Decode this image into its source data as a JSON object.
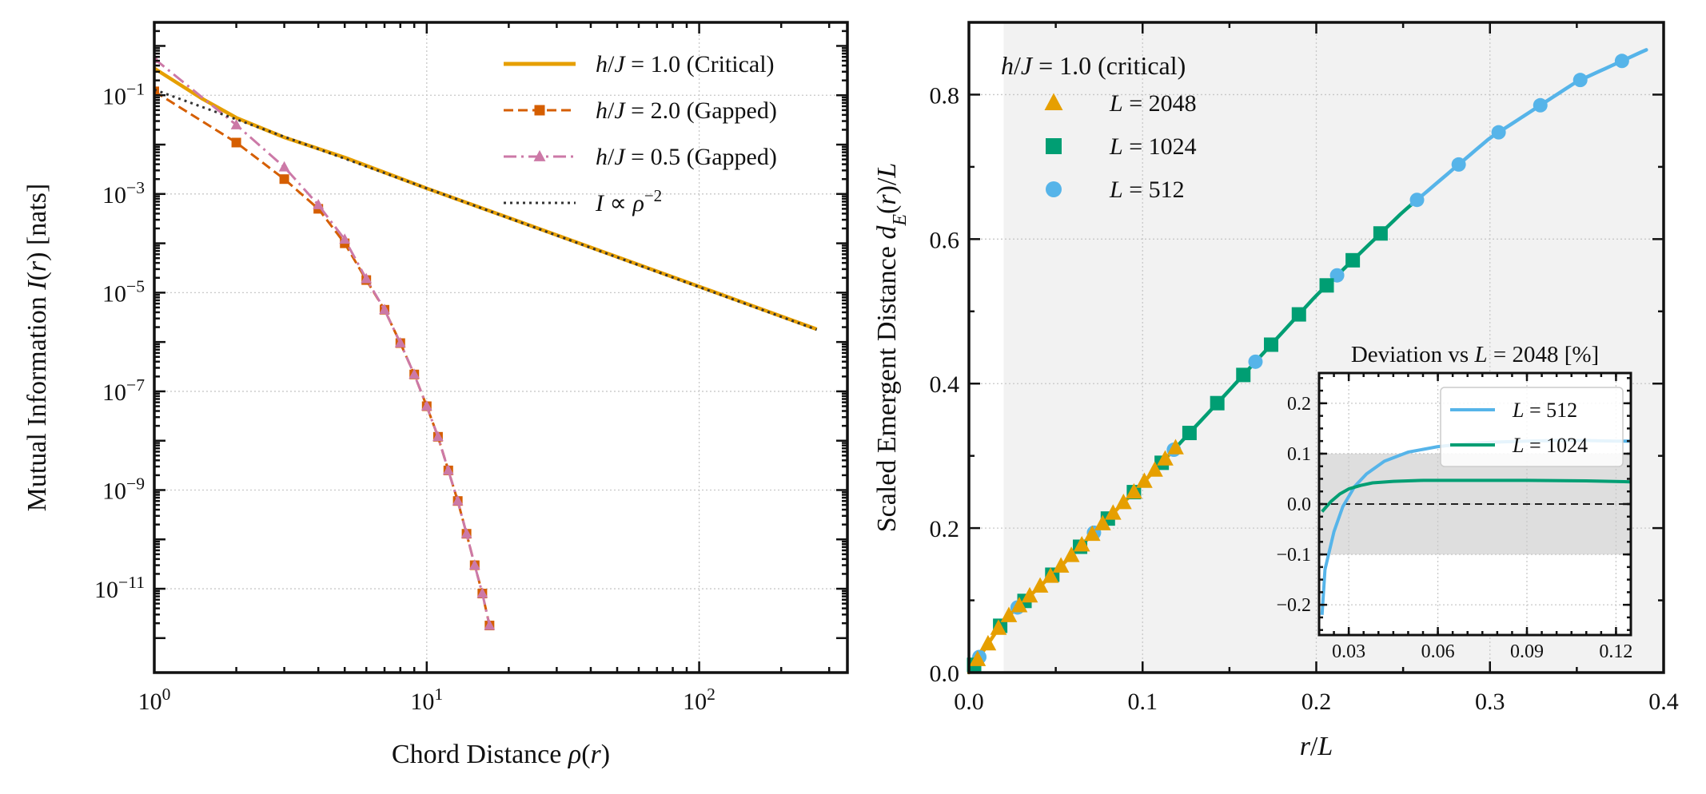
{
  "colors": {
    "critical": "#E69F00",
    "gapped2": "#D55E00",
    "gapped05": "#CC79A7",
    "fit": "#333333",
    "L2048": "#E69F00",
    "L1024": "#009E73",
    "L512": "#56B4E9",
    "shade": "#ececec",
    "band": "#bdbdbd"
  },
  "chart_data": [
    {
      "type": "line",
      "log_x": true,
      "log_y": true,
      "xlabel": "Chord Distance ρ(r)",
      "ylabel": "Mutual Information I(r) [nats]",
      "xlim": [
        1,
        350
      ],
      "ylim": [
        2e-13,
        3
      ],
      "x_ticks": [
        1,
        10,
        100
      ],
      "x_tick_labels": [
        {
          "base": "10",
          "exp": "0"
        },
        {
          "base": "10",
          "exp": "1"
        },
        {
          "base": "10",
          "exp": "2"
        }
      ],
      "y_ticks": [
        1e-11,
        1e-09,
        1e-07,
        1e-05,
        0.001,
        0.1
      ],
      "y_tick_labels": [
        {
          "base": "10",
          "exp": "−11"
        },
        {
          "base": "10",
          "exp": "−9"
        },
        {
          "base": "10",
          "exp": "−7"
        },
        {
          "base": "10",
          "exp": "−5"
        },
        {
          "base": "10",
          "exp": "−3"
        },
        {
          "base": "10",
          "exp": "−1"
        }
      ],
      "grid": true,
      "legend_position": "top-right",
      "series": [
        {
          "id": "critical",
          "name": "h/J = 1.0 (Critical)",
          "legend_parts": [
            {
              "t": "h",
              "i": true
            },
            {
              "t": "/",
              "i": false
            },
            {
              "t": "J",
              "i": true
            },
            {
              "t": " = 1.0 (Critical)",
              "i": false
            }
          ],
          "color_key": "critical",
          "style": "solid",
          "marker": "none",
          "x": [
            1,
            1.5,
            2,
            3,
            5,
            10,
            20,
            50,
            100,
            270
          ],
          "y": [
            0.35,
            0.085,
            0.035,
            0.014,
            0.0055,
            0.0013,
            0.00033,
            5.3e-05,
            1.33e-05,
            1.82e-06
          ]
        },
        {
          "id": "gapped2",
          "name": "h/J = 2.0 (Gapped)",
          "legend_parts": [
            {
              "t": "h",
              "i": true
            },
            {
              "t": "/",
              "i": false
            },
            {
              "t": "J",
              "i": true
            },
            {
              "t": " = 2.0 (Gapped)",
              "i": false
            }
          ],
          "color_key": "gapped2",
          "style": "dashed",
          "marker": "square",
          "x": [
            1,
            2,
            3,
            4,
            5,
            6,
            7,
            8,
            9,
            10,
            11,
            12,
            13,
            14,
            15,
            16,
            17
          ],
          "y": [
            0.12,
            0.011,
            0.002,
            0.0005,
            0.0001,
            1.8e-05,
            4.5e-06,
            9.5e-07,
            2.2e-07,
            5e-08,
            1.2e-08,
            2.5e-09,
            6e-10,
            1.3e-10,
            3e-11,
            8e-12,
            1.8e-12
          ]
        },
        {
          "id": "gapped05",
          "name": "h/J = 0.5 (Gapped)",
          "legend_parts": [
            {
              "t": "h",
              "i": true
            },
            {
              "t": "/",
              "i": false
            },
            {
              "t": "J",
              "i": true
            },
            {
              "t": " = 0.5 (Gapped)",
              "i": false
            }
          ],
          "color_key": "gapped05",
          "style": "dashdot",
          "marker": "triangle",
          "x": [
            1,
            2,
            3,
            4,
            5,
            6,
            7,
            8,
            9,
            10,
            11,
            12,
            13,
            14,
            15,
            16,
            17
          ],
          "y": [
            0.55,
            0.025,
            0.0035,
            0.0006,
            0.00012,
            1.9e-05,
            4.5e-06,
            9.5e-07,
            2.2e-07,
            5e-08,
            1.2e-08,
            2.5e-09,
            6e-10,
            1.3e-10,
            3e-11,
            8e-12,
            1.8e-12
          ]
        },
        {
          "id": "fit",
          "name": "I ∝ ρ^−2",
          "legend_parts": [
            {
              "t": "I",
              "i": true
            },
            {
              "t": " ∝ ",
              "i": false
            },
            {
              "t": "ρ",
              "i": true
            }
          ],
          "legend_sup": "−2",
          "color_key": "fit",
          "style": "dotted",
          "marker": "none",
          "x": [
            1,
            270
          ],
          "y": [
            0.13,
            1.78e-06
          ]
        }
      ]
    },
    {
      "type": "scatter",
      "xlabel": "r/L",
      "ylabel": "Scaled Emergent Distance d_E(r)/L",
      "xlim": [
        0,
        0.4
      ],
      "ylim": [
        0,
        0.9
      ],
      "x_ticks": [
        0,
        0.1,
        0.2,
        0.3,
        0.4
      ],
      "x_tick_labels": [
        "0.0",
        "0.1",
        "0.2",
        "0.3",
        "0.4"
      ],
      "y_ticks": [
        0,
        0.2,
        0.4,
        0.6,
        0.8
      ],
      "y_tick_labels": [
        "0.0",
        "0.2",
        "0.4",
        "0.6",
        "0.8"
      ],
      "grid": true,
      "shaded_region_x": [
        0.02,
        0.4
      ],
      "legend_position": "top-left",
      "legend_title": "h/J = 1.0 (critical)",
      "legend_title_parts": [
        {
          "t": "h",
          "i": true
        },
        {
          "t": "/",
          "i": false
        },
        {
          "t": "J",
          "i": true
        },
        {
          "t": " = 1.0 (critical)",
          "i": false
        }
      ],
      "curve": {
        "x": [
          0,
          0.02,
          0.05,
          0.1,
          0.15,
          0.2,
          0.25,
          0.3,
          0.35,
          0.39
        ],
        "y": [
          0,
          0.072,
          0.14,
          0.262,
          0.391,
          0.522,
          0.638,
          0.74,
          0.818,
          0.862
        ],
        "segments": [
          {
            "color_key": "L2048",
            "x_from": 0,
            "x_to": 0.12
          },
          {
            "color_key": "L1024",
            "x_from": 0.12,
            "x_to": 0.255
          },
          {
            "color_key": "L512",
            "x_from": 0.255,
            "x_to": 0.39
          }
        ]
      },
      "series": [
        {
          "id": "L2048",
          "name": "L = 2048",
          "legend_parts": [
            {
              "t": "L",
              "i": true
            },
            {
              "t": " = 2048",
              "i": false
            }
          ],
          "color_key": "L2048",
          "marker": "triangle",
          "x": [
            0.005,
            0.011,
            0.017,
            0.023,
            0.029,
            0.035,
            0.041,
            0.047,
            0.053,
            0.059,
            0.065,
            0.071,
            0.077,
            0.083,
            0.089,
            0.095,
            0.101,
            0.107,
            0.113,
            0.119
          ]
        },
        {
          "id": "L1024",
          "name": "L = 1024",
          "legend_parts": [
            {
              "t": "L",
              "i": true
            },
            {
              "t": " = 1024",
              "i": false
            }
          ],
          "color_key": "L1024",
          "marker": "square",
          "x": [
            0.003,
            0.018,
            0.032,
            0.048,
            0.064,
            0.08,
            0.095,
            0.111,
            0.127,
            0.143,
            0.158,
            0.174,
            0.19,
            0.206,
            0.221,
            0.237
          ]
        },
        {
          "id": "L512",
          "name": "L = 512",
          "legend_parts": [
            {
              "t": "L",
              "i": true
            },
            {
              "t": " = 512",
              "i": false
            }
          ],
          "color_key": "L512",
          "marker": "circle",
          "x": [
            0.006,
            0.028,
            0.072,
            0.118,
            0.165,
            0.212,
            0.258,
            0.282,
            0.305,
            0.329,
            0.352,
            0.376
          ]
        }
      ],
      "inset": {
        "title": "Deviation vs L = 2048 [%]",
        "title_parts": [
          {
            "t": "Deviation vs ",
            "i": false
          },
          {
            "t": "L",
            "i": true
          },
          {
            "t": " = 2048 [%]",
            "i": false
          }
        ],
        "xlim": [
          0.02,
          0.125
        ],
        "ylim": [
          -0.26,
          0.26
        ],
        "x_ticks": [
          0.03,
          0.06,
          0.09,
          0.12
        ],
        "x_tick_labels": [
          "0.03",
          "0.06",
          "0.09",
          "0.12"
        ],
        "y_ticks": [
          -0.2,
          -0.1,
          0,
          0.1,
          0.2
        ],
        "y_tick_labels": [
          "−0.2",
          "−0.1",
          "0.0",
          "0.1",
          "0.2"
        ],
        "band": [
          -0.1,
          0.1
        ],
        "reference_line": 0,
        "legend_position": "top-right",
        "series": [
          {
            "id": "L512",
            "name": "L = 512",
            "legend_parts": [
              {
                "t": "L",
                "i": true
              },
              {
                "t": " = 512",
                "i": false
              }
            ],
            "color_key": "L512",
            "x": [
              0.021,
              0.022,
              0.025,
              0.028,
              0.032,
              0.036,
              0.042,
              0.05,
              0.06,
              0.07,
              0.08,
              0.09,
              0.1,
              0.11,
              0.12,
              0.125
            ],
            "y": [
              -0.22,
              -0.13,
              -0.055,
              -0.005,
              0.035,
              0.06,
              0.085,
              0.103,
              0.114,
              0.12,
              0.123,
              0.125,
              0.126,
              0.126,
              0.125,
              0.125
            ]
          },
          {
            "id": "L1024",
            "name": "L = 1024",
            "legend_parts": [
              {
                "t": "L",
                "i": true
              },
              {
                "t": " = 1024",
                "i": false
              }
            ],
            "color_key": "L1024",
            "x": [
              0.021,
              0.024,
              0.027,
              0.03,
              0.034,
              0.038,
              0.045,
              0.055,
              0.07,
              0.09,
              0.11,
              0.125
            ],
            "y": [
              -0.015,
              0.005,
              0.02,
              0.03,
              0.037,
              0.042,
              0.045,
              0.047,
              0.047,
              0.047,
              0.046,
              0.044
            ]
          }
        ]
      }
    }
  ]
}
